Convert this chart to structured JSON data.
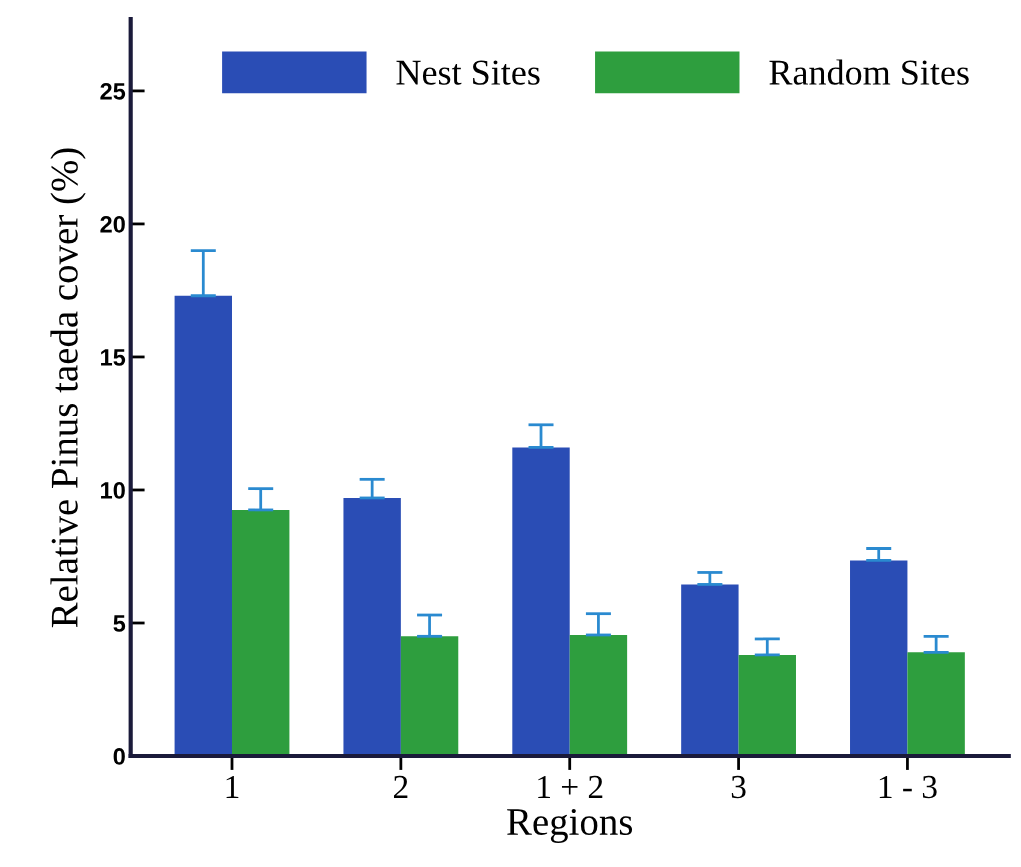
{
  "chart_data": {
    "type": "bar",
    "xlabel": "Regions",
    "ylabel": "Relative Pinus taeda cover (%)",
    "categories": [
      "1",
      "2",
      "1 + 2",
      "3",
      "1 - 3"
    ],
    "series": [
      {
        "name": "Nest Sites",
        "color": "#2a4db5",
        "values": [
          17.3,
          9.7,
          11.6,
          6.45,
          7.35
        ],
        "errors": [
          1.7,
          0.7,
          0.85,
          0.45,
          0.45
        ]
      },
      {
        "name": "Random Sites",
        "color": "#2e9e3e",
        "values": [
          9.25,
          4.5,
          4.55,
          3.8,
          3.9
        ],
        "errors": [
          0.8,
          0.8,
          0.8,
          0.6,
          0.6
        ]
      }
    ],
    "ylim": [
      0,
      27.7
    ],
    "yticks": [
      0,
      5,
      10,
      15,
      20,
      25
    ],
    "legend": "top",
    "grid": false
  }
}
